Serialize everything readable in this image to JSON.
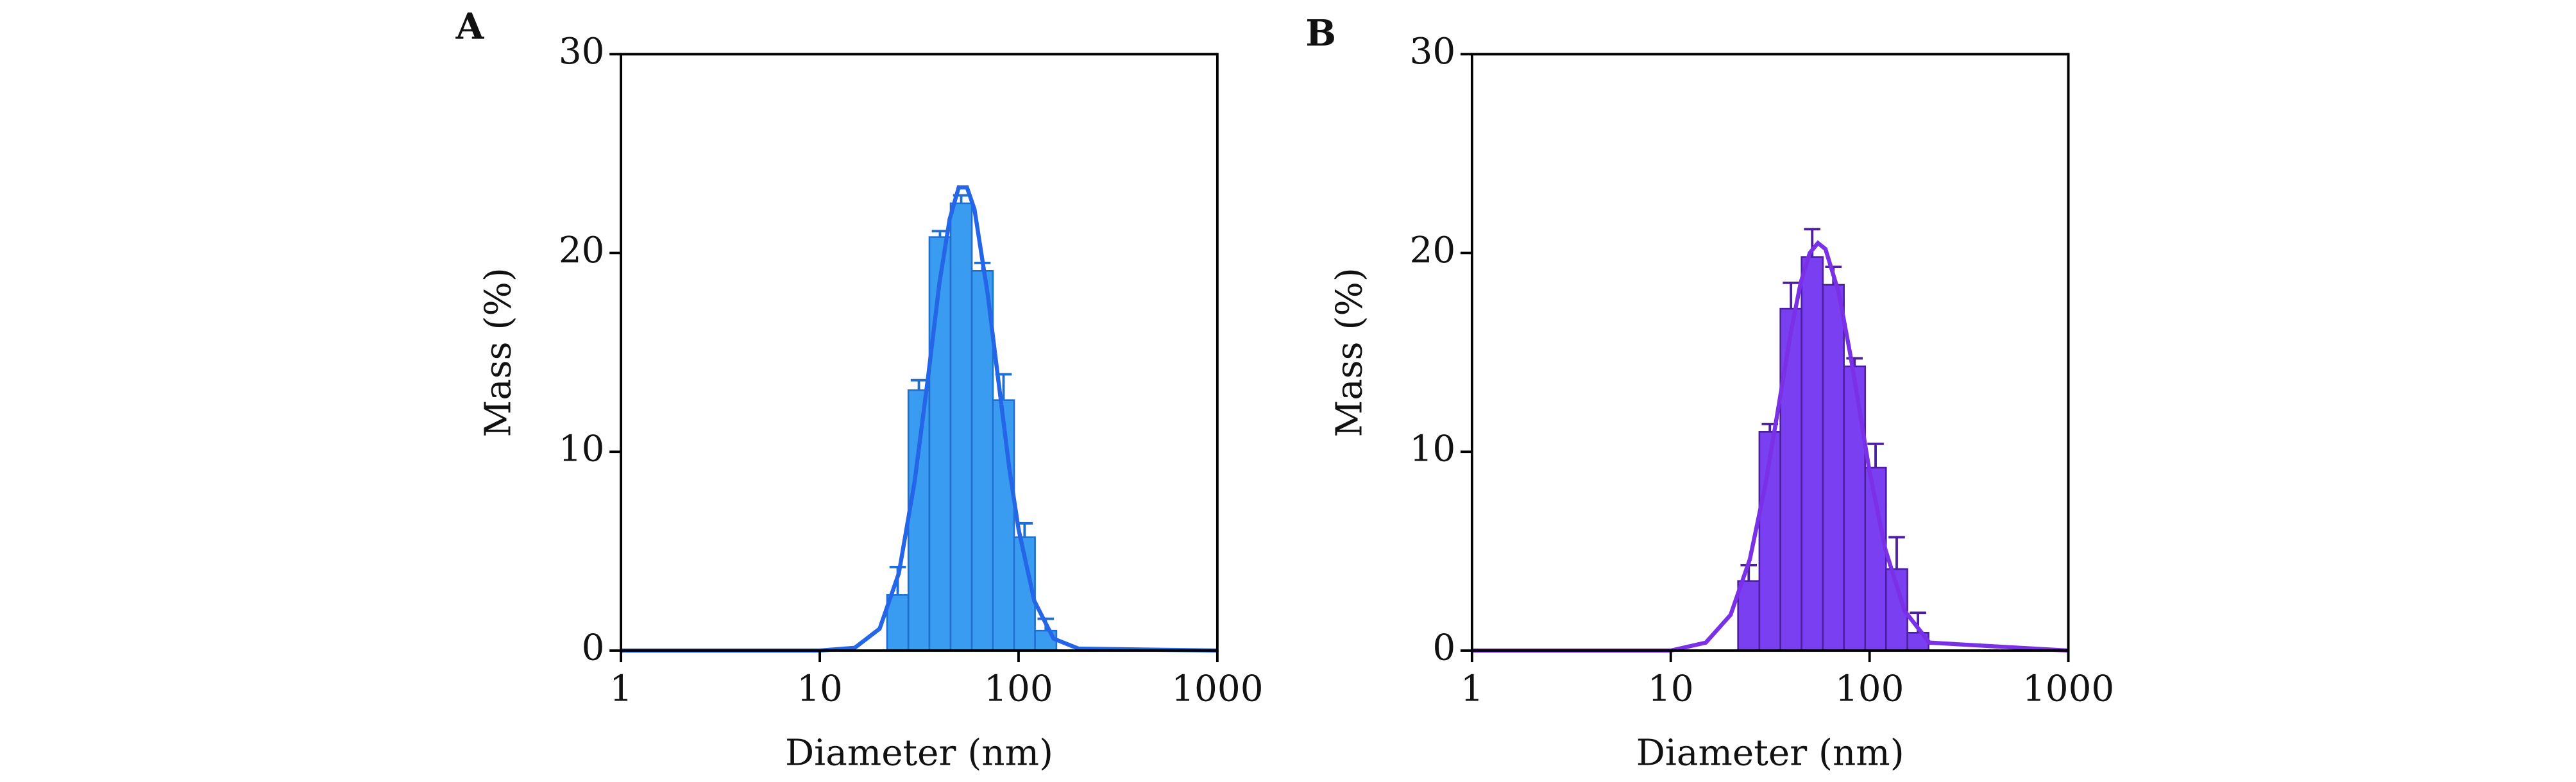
{
  "chart_data": [
    {
      "type": "histogram",
      "panel_label": "A",
      "xlabel": "Diameter (nm)",
      "ylabel": "Mass (%)",
      "xscale": "log",
      "xlim": [
        1,
        1000
      ],
      "xticks": [
        1,
        10,
        100,
        1000
      ],
      "ylim": [
        0,
        30
      ],
      "yticks": [
        0,
        10,
        20,
        30
      ],
      "color": "#3a9cf0",
      "edge_color": "#1e6fd0",
      "line_color": "#2566e8",
      "bins": [
        21.8,
        27.9,
        35.6,
        45.5,
        58.2,
        74.3,
        95,
        121,
        155
      ],
      "values": [
        2.8,
        13.1,
        20.8,
        22.5,
        19.1,
        12.6,
        5.7,
        1.0
      ],
      "errors": [
        1.4,
        0.5,
        0.3,
        0.4,
        0.4,
        1.3,
        0.7,
        0.6
      ],
      "fit": {
        "x": [
          1,
          10,
          15,
          20,
          25,
          30,
          35,
          40,
          45,
          50,
          55,
          60,
          70,
          80,
          90,
          100,
          120,
          150,
          200,
          1000
        ],
        "values": [
          0,
          0,
          0.14,
          1.1,
          3.9,
          8.5,
          13.7,
          18.5,
          21.7,
          23.3,
          23.3,
          22.2,
          17.9,
          13.2,
          9.1,
          6.1,
          2.5,
          0.6,
          0.1,
          0
        ]
      }
    },
    {
      "type": "histogram",
      "panel_label": "B",
      "xlabel": "Diameter (nm)",
      "ylabel": "Mass (%)",
      "xscale": "log",
      "xlim": [
        1,
        1000
      ],
      "xticks": [
        1,
        10,
        100,
        1000
      ],
      "ylim": [
        0,
        30
      ],
      "yticks": [
        0,
        10,
        20,
        30
      ],
      "color": "#7a3ff0",
      "edge_color": "#4a1fa0",
      "line_color": "#7a30e6",
      "bins": [
        21.8,
        27.9,
        35.6,
        45.5,
        58.2,
        74.3,
        95,
        121,
        155,
        198
      ],
      "values": [
        3.5,
        11.0,
        17.2,
        19.8,
        18.4,
        14.3,
        9.2,
        4.1,
        0.9
      ],
      "errors": [
        0.8,
        0.4,
        1.3,
        1.4,
        0.9,
        0.4,
        1.2,
        1.6,
        1.0
      ],
      "fit": {
        "x": [
          1,
          10,
          15,
          20,
          25,
          30,
          35,
          40,
          45,
          50,
          55,
          60,
          70,
          80,
          90,
          100,
          120,
          150,
          200,
          1000
        ],
        "values": [
          0,
          0,
          0.4,
          1.8,
          4.6,
          8.4,
          12.4,
          15.9,
          18.5,
          20.0,
          20.5,
          20.2,
          18.0,
          14.9,
          11.8,
          9.0,
          5.1,
          2.0,
          0.4,
          0
        ]
      }
    }
  ]
}
